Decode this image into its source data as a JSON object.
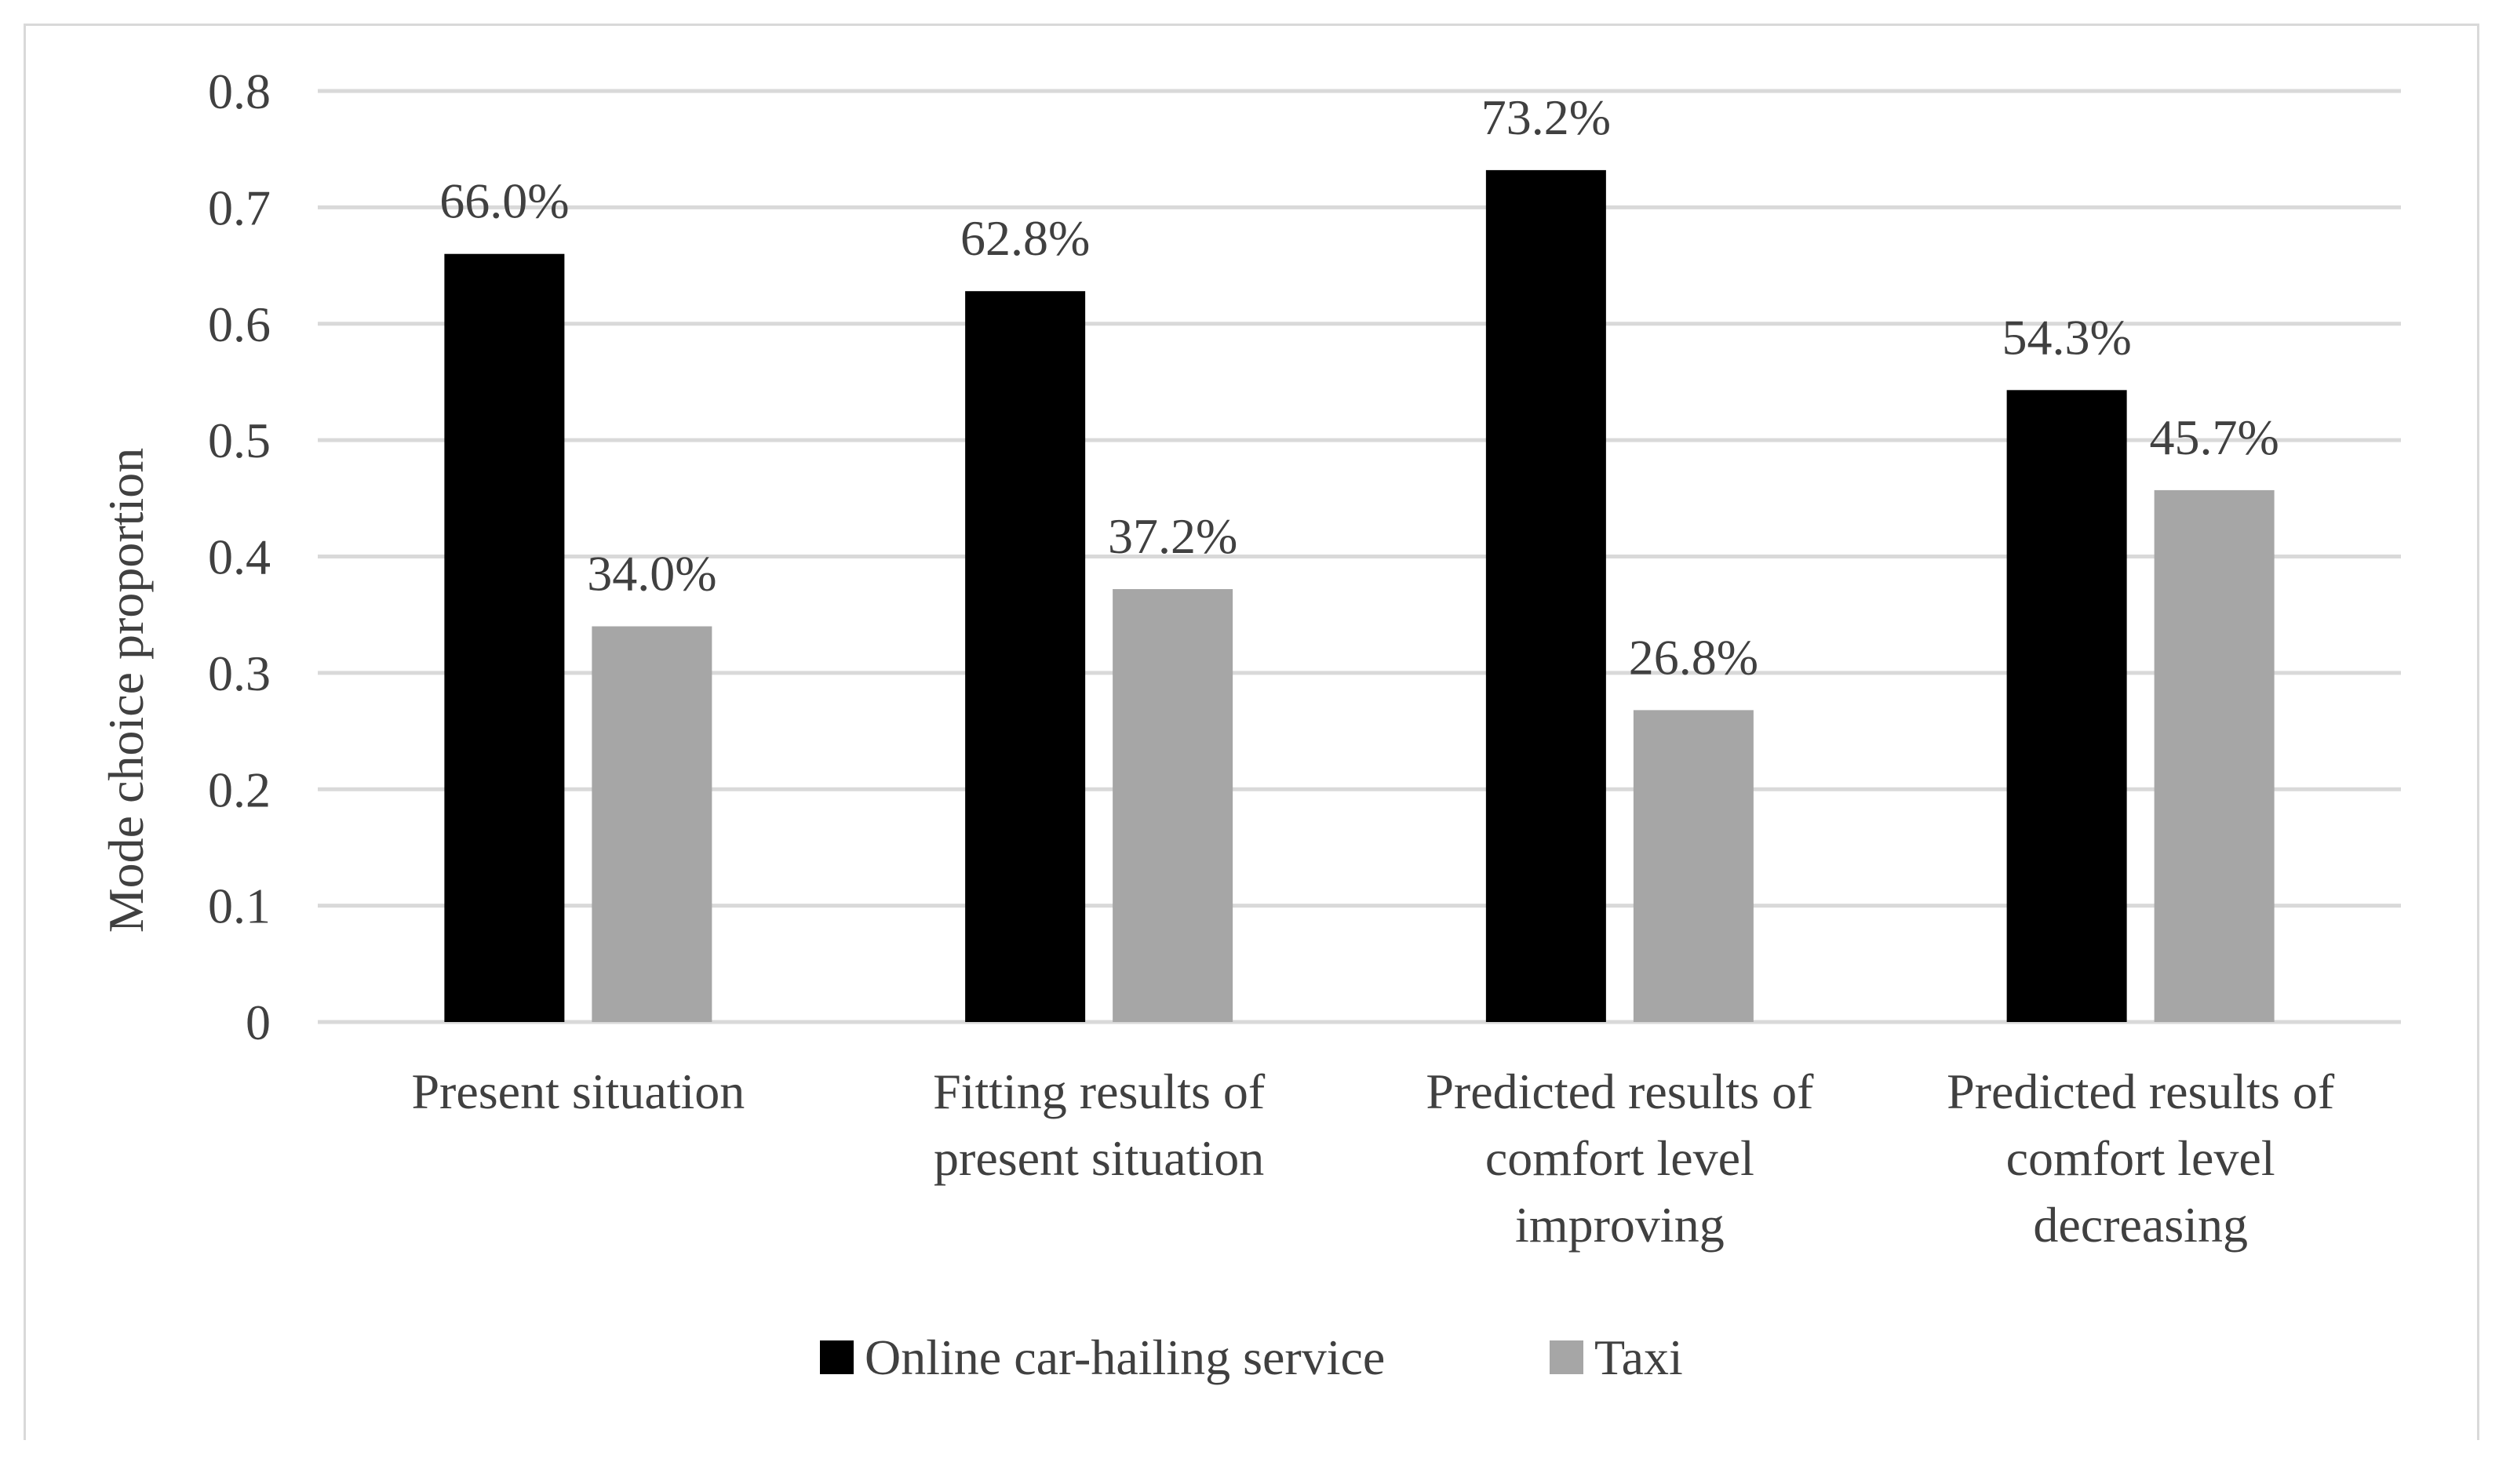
{
  "chart_data": {
    "type": "bar",
    "title": "",
    "xlabel": "",
    "ylabel": "Mode choice proportion",
    "ylim": [
      0,
      0.8
    ],
    "yticks": [
      "0",
      "0.1",
      "0.2",
      "0.3",
      "0.4",
      "0.5",
      "0.6",
      "0.7",
      "0.8"
    ],
    "grid": true,
    "legend_position": "bottom",
    "categories": [
      [
        "Present situation"
      ],
      [
        "Fitting results of",
        "present situation"
      ],
      [
        "Predicted results of",
        "comfort level",
        "improving"
      ],
      [
        "Predicted results of",
        "comfort level",
        "decreasing"
      ]
    ],
    "series": [
      {
        "name": "Online car-hailing service",
        "color": "#000000",
        "values": [
          0.66,
          0.628,
          0.732,
          0.543
        ],
        "labels": [
          "66.0%",
          "62.8%",
          "73.2%",
          "54.3%"
        ]
      },
      {
        "name": "Taxi",
        "color": "#a6a6a6",
        "values": [
          0.34,
          0.372,
          0.268,
          0.457
        ],
        "labels": [
          "34.0%",
          "37.2%",
          "26.8%",
          "45.7%"
        ]
      }
    ]
  }
}
